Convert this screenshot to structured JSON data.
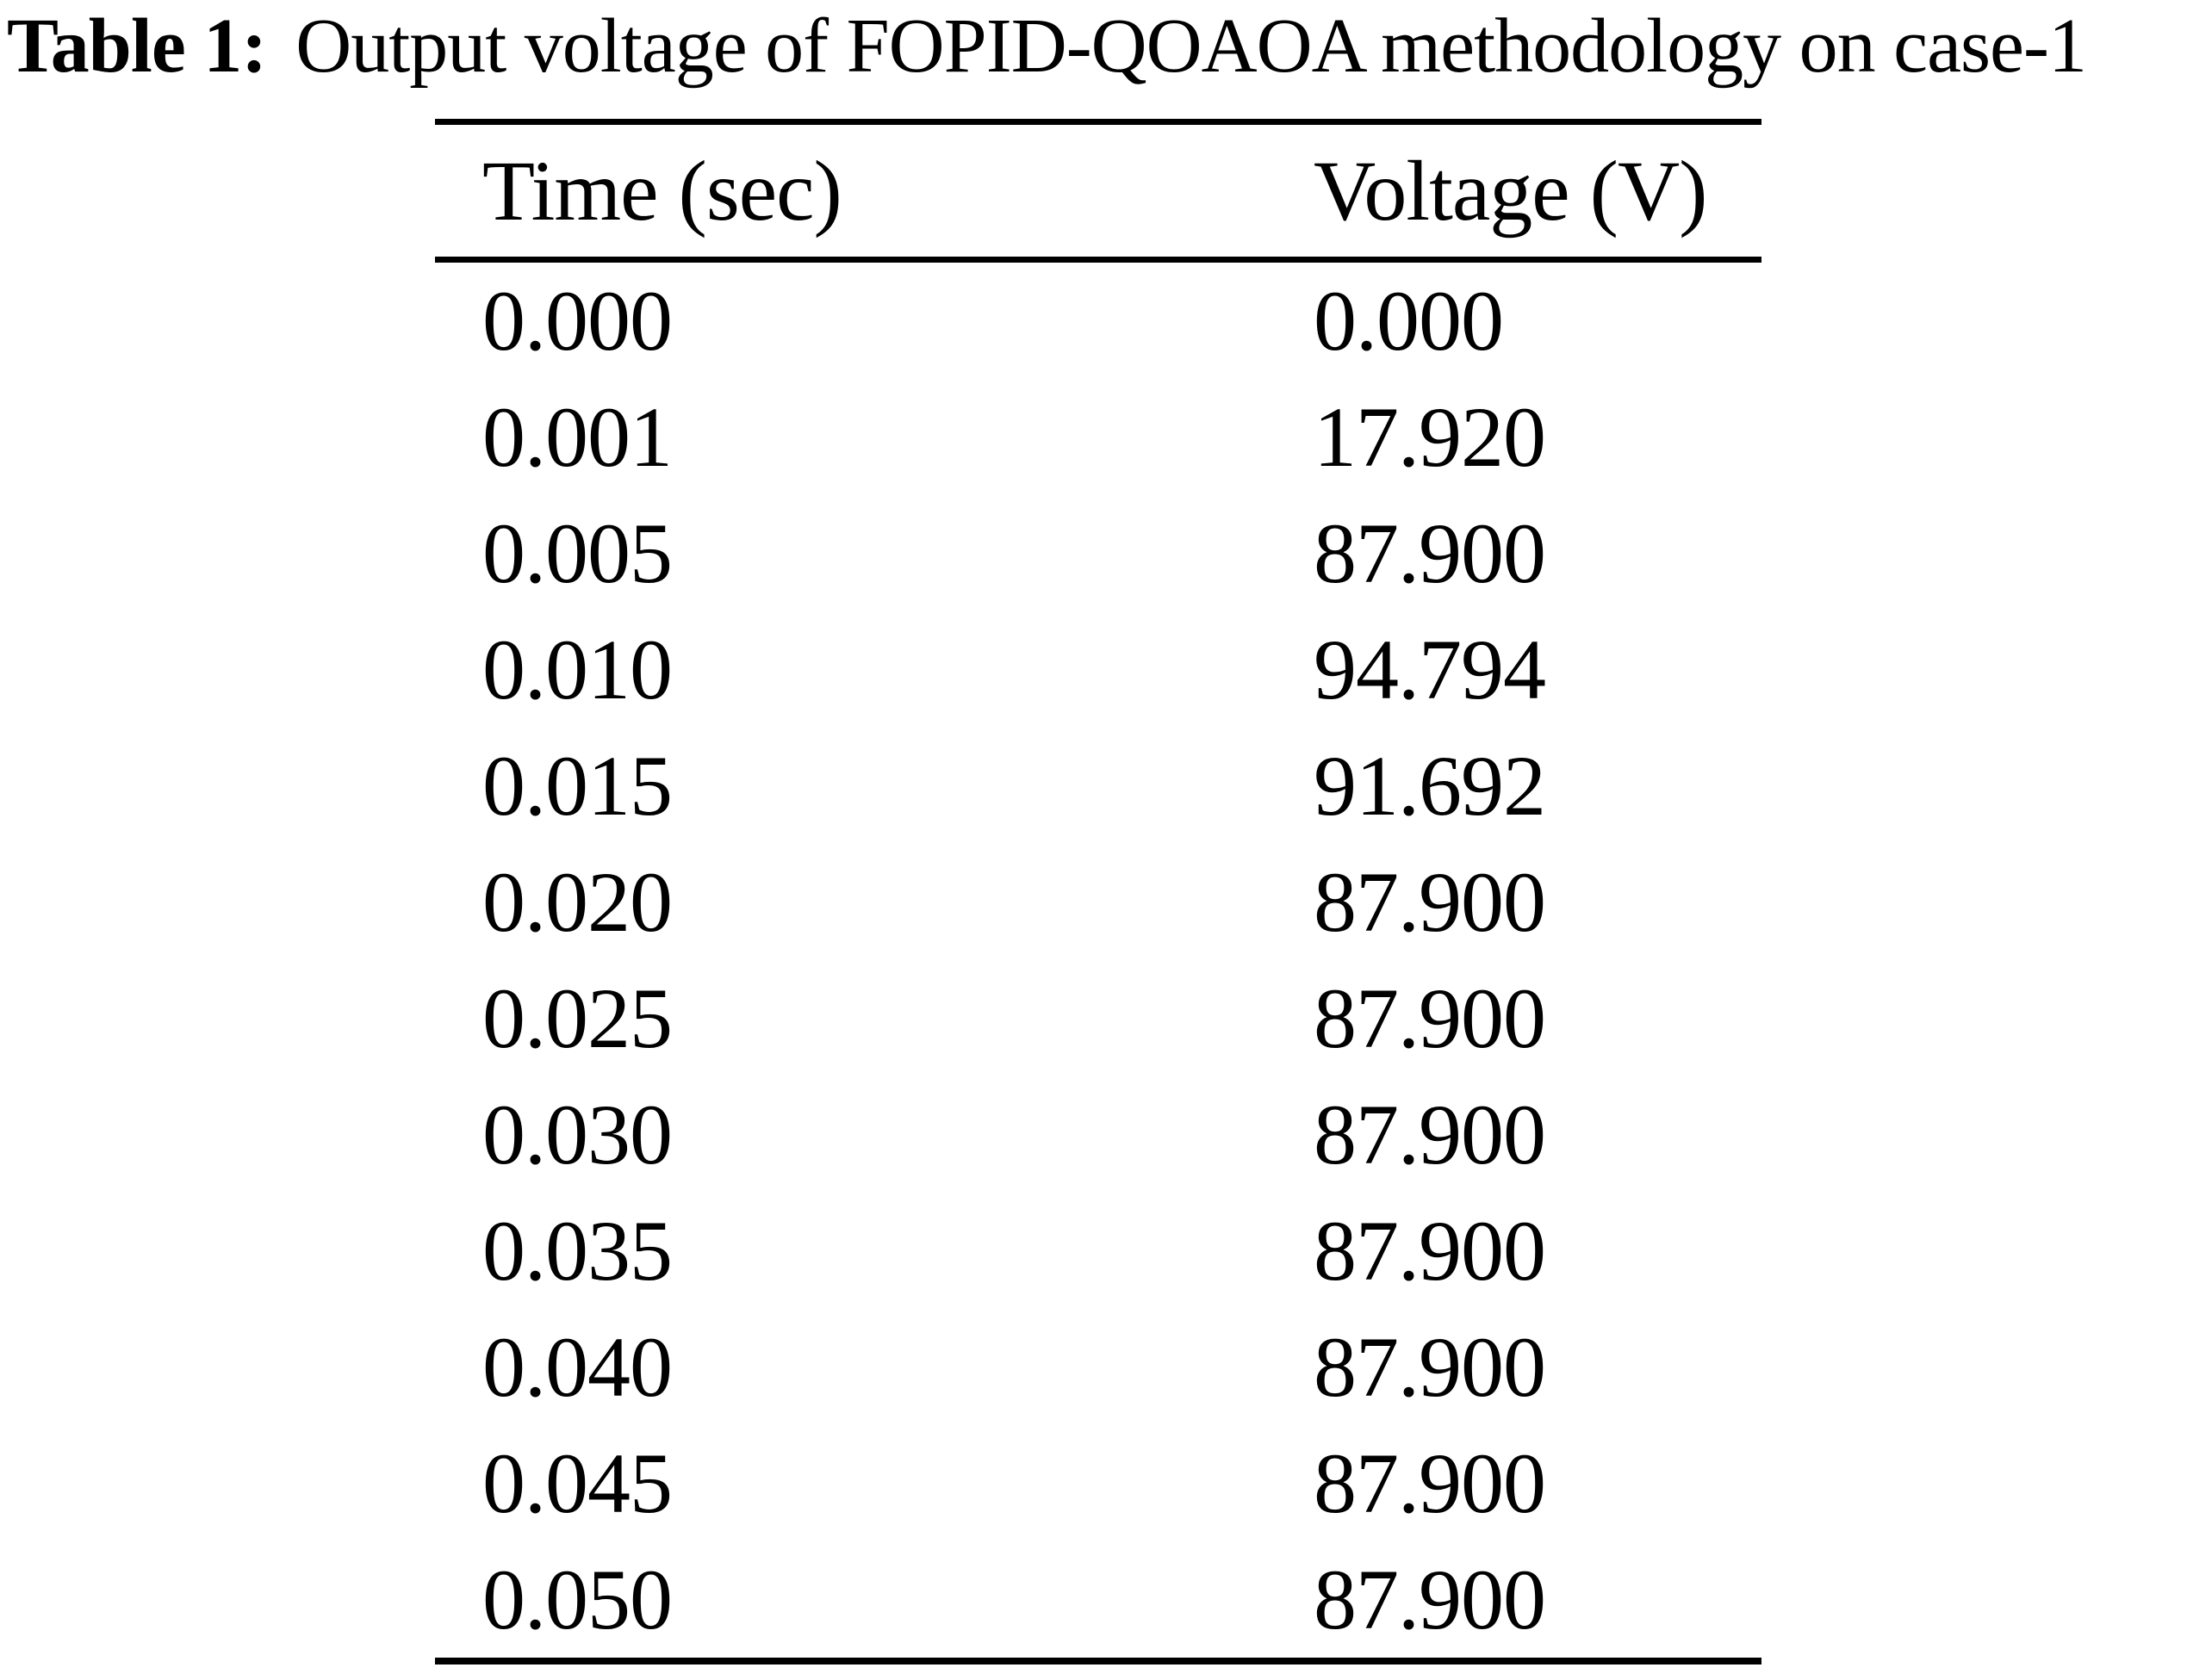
{
  "title": {
    "label": "Table 1:",
    "text": "Output voltage of FOPID-QOAOA methodology on case-1"
  },
  "table": {
    "headers": {
      "time": "Time (sec)",
      "voltage": "Voltage (V)"
    },
    "rows": [
      {
        "time": "0.000",
        "voltage": "0.000"
      },
      {
        "time": "0.001",
        "voltage": "17.920"
      },
      {
        "time": "0.005",
        "voltage": "87.900"
      },
      {
        "time": "0.010",
        "voltage": "94.794"
      },
      {
        "time": "0.015",
        "voltage": "91.692"
      },
      {
        "time": "0.020",
        "voltage": "87.900"
      },
      {
        "time": "0.025",
        "voltage": "87.900"
      },
      {
        "time": "0.030",
        "voltage": "87.900"
      },
      {
        "time": "0.035",
        "voltage": "87.900"
      },
      {
        "time": "0.040",
        "voltage": "87.900"
      },
      {
        "time": "0.045",
        "voltage": "87.900"
      },
      {
        "time": "0.050",
        "voltage": "87.900"
      }
    ]
  },
  "chart_data": {
    "type": "table",
    "title": "Table 1: Output voltage of FOPID-QOAOA methodology on case-1",
    "columns": [
      "Time (sec)",
      "Voltage (V)"
    ],
    "rows": [
      [
        0.0,
        0.0
      ],
      [
        0.001,
        17.92
      ],
      [
        0.005,
        87.9
      ],
      [
        0.01,
        94.794
      ],
      [
        0.015,
        91.692
      ],
      [
        0.02,
        87.9
      ],
      [
        0.025,
        87.9
      ],
      [
        0.03,
        87.9
      ],
      [
        0.035,
        87.9
      ],
      [
        0.04,
        87.9
      ],
      [
        0.045,
        87.9
      ],
      [
        0.05,
        87.9
      ]
    ],
    "colors": {
      "text": "#000000",
      "background": "#ffffff",
      "rule": "#000000"
    }
  }
}
